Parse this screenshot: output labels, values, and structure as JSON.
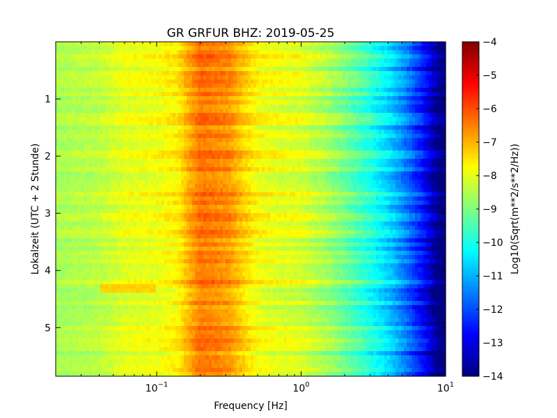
{
  "chart_data": {
    "type": "heatmap",
    "title": "GR GRFUR BHZ: 2019-05-25",
    "xlabel": "Frequency [Hz]",
    "ylabel": "Lokalzeit (UTC + 2 Stunde)",
    "xscale": "log",
    "xlim": [
      0.02,
      10
    ],
    "ylim": [
      5.85,
      0
    ],
    "x_ticks": [
      {
        "base": "10",
        "exp": "−1",
        "value": 0.1
      },
      {
        "base": "10",
        "exp": "0",
        "value": 1
      },
      {
        "base": "10",
        "exp": "1",
        "value": 10
      }
    ],
    "y_ticks": [
      "1",
      "2",
      "3",
      "4",
      "5"
    ],
    "colorbar": {
      "label": "Log10(Sqrt(m**2/s**2/Hz))",
      "range": [
        -14,
        -4
      ],
      "colormap": "jet",
      "ticks": [
        "−4",
        "−5",
        "−6",
        "−7",
        "−8",
        "−9",
        "−10",
        "−11",
        "−12",
        "−13",
        "−14"
      ]
    },
    "spectrum_profile": {
      "frequency_hz": [
        0.02,
        0.04,
        0.06,
        0.1,
        0.14,
        0.17,
        0.2,
        0.25,
        0.32,
        0.4,
        0.5,
        0.7,
        1.0,
        1.5,
        2.0,
        3.0,
        4.0,
        5.0,
        6.0,
        7.0,
        8.0,
        9.0,
        10.0
      ],
      "level": [
        -8.6,
        -8.4,
        -8.0,
        -7.9,
        -7.6,
        -6.9,
        -6.4,
        -6.5,
        -6.7,
        -7.3,
        -7.8,
        -8.0,
        -8.1,
        -8.6,
        -9.1,
        -9.9,
        -10.6,
        -11.3,
        -12.0,
        -12.6,
        -13.3,
        -14.0,
        -14.2
      ]
    },
    "rows": 80,
    "anomaly": {
      "time_hours": [
        4.24,
        4.38
      ],
      "frequency_hz": [
        0.04,
        0.1
      ],
      "level": -7.3
    }
  }
}
